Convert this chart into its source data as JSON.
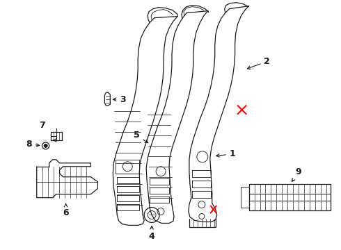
{
  "bg_color": "#ffffff",
  "line_color": "#1a1a1a",
  "red_color": "#ff0000",
  "lw": 0.9
}
